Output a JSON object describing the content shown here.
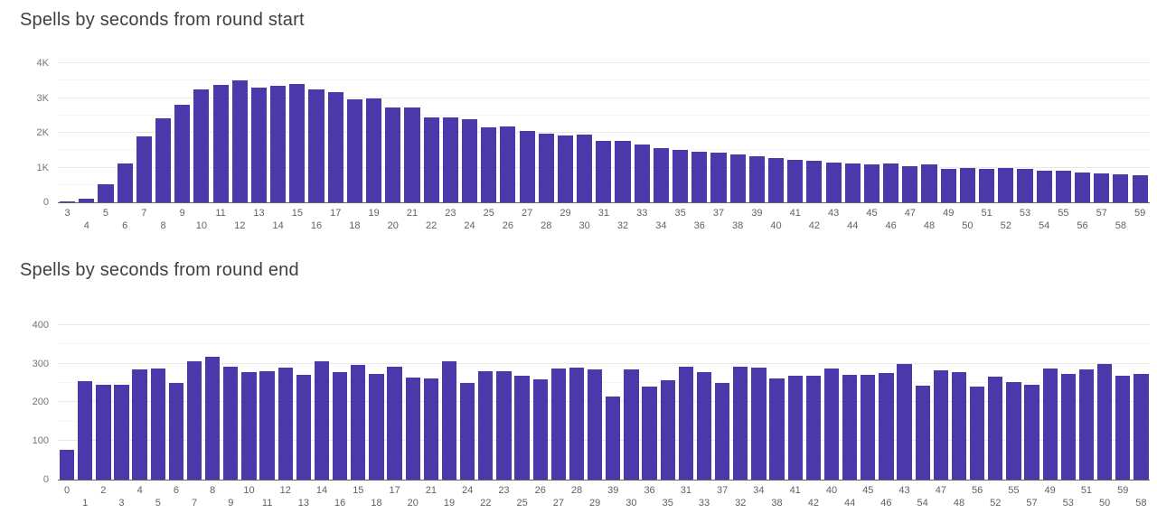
{
  "chart_data": [
    {
      "type": "bar",
      "title": "Spells by seconds from round start",
      "xlabel": "",
      "ylabel": "",
      "bar_color": "#4b38ab",
      "grid": true,
      "legend": "none",
      "ylim": [
        0,
        4000
      ],
      "y_tick_interval": 1000,
      "y_ticks": [
        "0",
        "1K",
        "2K",
        "3K",
        "4K"
      ],
      "categories": [
        "3",
        "4",
        "5",
        "6",
        "7",
        "8",
        "9",
        "10",
        "11",
        "12",
        "13",
        "14",
        "15",
        "16",
        "17",
        "18",
        "19",
        "20",
        "21",
        "22",
        "23",
        "24",
        "25",
        "26",
        "27",
        "28",
        "29",
        "30",
        "31",
        "32",
        "33",
        "34",
        "35",
        "36",
        "37",
        "38",
        "39",
        "40",
        "41",
        "42",
        "43",
        "44",
        "45",
        "46",
        "47",
        "48",
        "49",
        "50",
        "51",
        "52",
        "53",
        "54",
        "55",
        "56",
        "57",
        "58",
        "59"
      ],
      "values": [
        25,
        115,
        530,
        1120,
        1900,
        2420,
        2810,
        3250,
        3370,
        3500,
        3290,
        3340,
        3410,
        3250,
        3160,
        2950,
        2990,
        2715,
        2715,
        2440,
        2440,
        2390,
        2150,
        2180,
        2040,
        1975,
        1930,
        1950,
        1760,
        1760,
        1670,
        1570,
        1505,
        1445,
        1425,
        1375,
        1320,
        1270,
        1230,
        1200,
        1140,
        1120,
        1080,
        1120,
        1040,
        1080,
        970,
        1000,
        970,
        975,
        955,
        905,
        915,
        845,
        820,
        800,
        770
      ]
    },
    {
      "type": "bar",
      "title": "Spells by seconds from round end",
      "xlabel": "",
      "ylabel": "",
      "bar_color": "#4b38ab",
      "grid": true,
      "legend": "none",
      "ylim": [
        0,
        400
      ],
      "y_tick_interval": 100,
      "y_ticks": [
        "0",
        "100",
        "200",
        "300",
        "400"
      ],
      "categories": [
        "0",
        "1",
        "2",
        "3",
        "4",
        "5",
        "6",
        "7",
        "8",
        "9",
        "10",
        "11",
        "12",
        "13",
        "14",
        "16",
        "15",
        "18",
        "17",
        "20",
        "21",
        "19",
        "24",
        "22",
        "23",
        "25",
        "26",
        "27",
        "28",
        "29",
        "39",
        "30",
        "36",
        "35",
        "31",
        "33",
        "37",
        "32",
        "34",
        "38",
        "41",
        "42",
        "40",
        "44",
        "45",
        "46",
        "43",
        "54",
        "47",
        "48",
        "56",
        "52",
        "55",
        "57",
        "49",
        "53",
        "51",
        "50",
        "59",
        "58"
      ],
      "values": [
        78,
        255,
        246,
        245,
        286,
        288,
        250,
        305,
        318,
        291,
        277,
        280,
        290,
        270,
        305,
        278,
        297,
        273,
        292,
        264,
        262,
        306,
        251,
        280,
        281,
        269,
        259,
        288,
        289,
        284,
        216,
        284,
        240,
        257,
        293,
        278,
        251,
        292,
        290,
        261,
        269,
        268,
        287,
        271,
        271,
        276,
        299,
        244,
        282,
        278,
        240,
        266,
        252,
        246,
        288,
        274,
        285,
        300,
        269,
        274
      ]
    }
  ]
}
